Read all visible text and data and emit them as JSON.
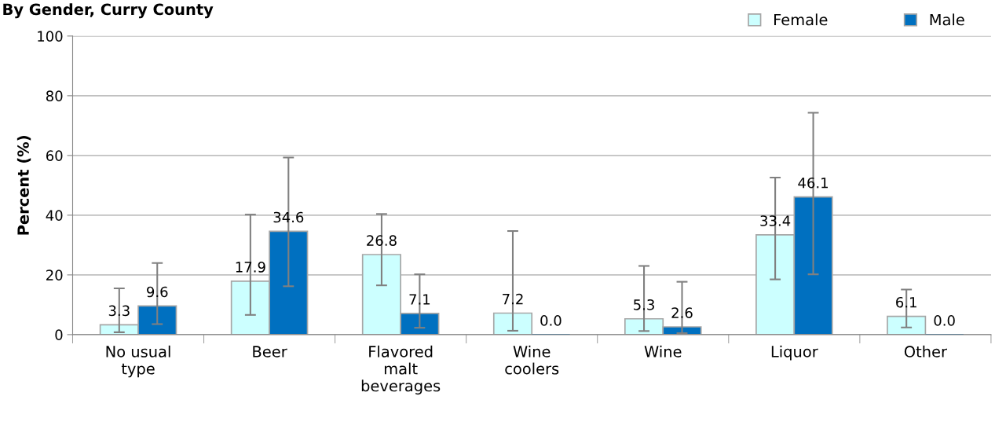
{
  "chart_data": {
    "type": "bar",
    "title": "By Gender, Curry County",
    "ylabel": "Percent (%)",
    "categories": [
      "No usual\ntype",
      "Beer",
      "Flavored\nmalt\nbeverages",
      "Wine\ncoolers",
      "Wine",
      "Liquor",
      "Other"
    ],
    "series": [
      {
        "name": "Female",
        "color": "#ccffff",
        "values": [
          3.3,
          17.9,
          26.8,
          7.2,
          5.3,
          33.4,
          6.1
        ],
        "value_labels": [
          "3.3",
          "17.9",
          "26.8",
          "7.2",
          "5.3",
          "33.4",
          "6.1"
        ],
        "errors": [
          [
            0.8,
            15.5
          ],
          [
            6.6,
            40.2
          ],
          [
            16.5,
            40.4
          ],
          [
            1.3,
            34.7
          ],
          [
            1.2,
            23.0
          ],
          [
            18.5,
            52.6
          ],
          [
            2.4,
            15.1
          ]
        ]
      },
      {
        "name": "Male",
        "color": "#0070c0",
        "values": [
          9.6,
          34.6,
          7.1,
          0.0,
          2.6,
          46.1,
          0.0
        ],
        "value_labels": [
          "9.6",
          "34.6",
          "7.1",
          "0.0",
          "2.6",
          "46.1",
          "0.0"
        ],
        "errors": [
          [
            3.5,
            24.0
          ],
          [
            16.2,
            59.3
          ],
          [
            2.3,
            20.2
          ],
          null,
          [
            0.5,
            17.7
          ],
          [
            20.2,
            74.3
          ],
          null
        ]
      }
    ],
    "ylim": [
      0,
      100
    ],
    "yticks": [
      0,
      20,
      40,
      60,
      80,
      100
    ],
    "grid": "y",
    "legend": "top right"
  }
}
